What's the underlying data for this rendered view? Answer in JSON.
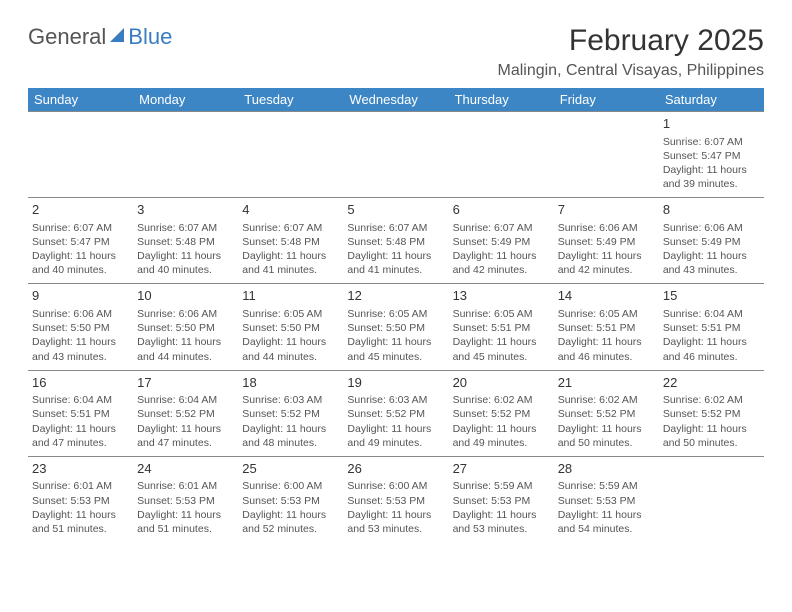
{
  "logo": {
    "text1": "General",
    "text2": "Blue"
  },
  "title": "February 2025",
  "location": "Malingin, Central Visayas, Philippines",
  "header_bg": "#3d86c6",
  "header_fg": "#ffffff",
  "border_color": "#888888",
  "empty_bg": "#eeeeee",
  "logo_blue": "#3a7cc0",
  "day_headers": [
    "Sunday",
    "Monday",
    "Tuesday",
    "Wednesday",
    "Thursday",
    "Friday",
    "Saturday"
  ],
  "weeks": [
    [
      {
        "empty": true
      },
      {
        "empty": true
      },
      {
        "empty": true
      },
      {
        "empty": true
      },
      {
        "empty": true
      },
      {
        "empty": true
      },
      {
        "day": "1",
        "sunrise": "Sunrise: 6:07 AM",
        "sunset": "Sunset: 5:47 PM",
        "daylight": "Daylight: 11 hours and 39 minutes."
      }
    ],
    [
      {
        "day": "2",
        "sunrise": "Sunrise: 6:07 AM",
        "sunset": "Sunset: 5:47 PM",
        "daylight": "Daylight: 11 hours and 40 minutes."
      },
      {
        "day": "3",
        "sunrise": "Sunrise: 6:07 AM",
        "sunset": "Sunset: 5:48 PM",
        "daylight": "Daylight: 11 hours and 40 minutes."
      },
      {
        "day": "4",
        "sunrise": "Sunrise: 6:07 AM",
        "sunset": "Sunset: 5:48 PM",
        "daylight": "Daylight: 11 hours and 41 minutes."
      },
      {
        "day": "5",
        "sunrise": "Sunrise: 6:07 AM",
        "sunset": "Sunset: 5:48 PM",
        "daylight": "Daylight: 11 hours and 41 minutes."
      },
      {
        "day": "6",
        "sunrise": "Sunrise: 6:07 AM",
        "sunset": "Sunset: 5:49 PM",
        "daylight": "Daylight: 11 hours and 42 minutes."
      },
      {
        "day": "7",
        "sunrise": "Sunrise: 6:06 AM",
        "sunset": "Sunset: 5:49 PM",
        "daylight": "Daylight: 11 hours and 42 minutes."
      },
      {
        "day": "8",
        "sunrise": "Sunrise: 6:06 AM",
        "sunset": "Sunset: 5:49 PM",
        "daylight": "Daylight: 11 hours and 43 minutes."
      }
    ],
    [
      {
        "day": "9",
        "sunrise": "Sunrise: 6:06 AM",
        "sunset": "Sunset: 5:50 PM",
        "daylight": "Daylight: 11 hours and 43 minutes."
      },
      {
        "day": "10",
        "sunrise": "Sunrise: 6:06 AM",
        "sunset": "Sunset: 5:50 PM",
        "daylight": "Daylight: 11 hours and 44 minutes."
      },
      {
        "day": "11",
        "sunrise": "Sunrise: 6:05 AM",
        "sunset": "Sunset: 5:50 PM",
        "daylight": "Daylight: 11 hours and 44 minutes."
      },
      {
        "day": "12",
        "sunrise": "Sunrise: 6:05 AM",
        "sunset": "Sunset: 5:50 PM",
        "daylight": "Daylight: 11 hours and 45 minutes."
      },
      {
        "day": "13",
        "sunrise": "Sunrise: 6:05 AM",
        "sunset": "Sunset: 5:51 PM",
        "daylight": "Daylight: 11 hours and 45 minutes."
      },
      {
        "day": "14",
        "sunrise": "Sunrise: 6:05 AM",
        "sunset": "Sunset: 5:51 PM",
        "daylight": "Daylight: 11 hours and 46 minutes."
      },
      {
        "day": "15",
        "sunrise": "Sunrise: 6:04 AM",
        "sunset": "Sunset: 5:51 PM",
        "daylight": "Daylight: 11 hours and 46 minutes."
      }
    ],
    [
      {
        "day": "16",
        "sunrise": "Sunrise: 6:04 AM",
        "sunset": "Sunset: 5:51 PM",
        "daylight": "Daylight: 11 hours and 47 minutes."
      },
      {
        "day": "17",
        "sunrise": "Sunrise: 6:04 AM",
        "sunset": "Sunset: 5:52 PM",
        "daylight": "Daylight: 11 hours and 47 minutes."
      },
      {
        "day": "18",
        "sunrise": "Sunrise: 6:03 AM",
        "sunset": "Sunset: 5:52 PM",
        "daylight": "Daylight: 11 hours and 48 minutes."
      },
      {
        "day": "19",
        "sunrise": "Sunrise: 6:03 AM",
        "sunset": "Sunset: 5:52 PM",
        "daylight": "Daylight: 11 hours and 49 minutes."
      },
      {
        "day": "20",
        "sunrise": "Sunrise: 6:02 AM",
        "sunset": "Sunset: 5:52 PM",
        "daylight": "Daylight: 11 hours and 49 minutes."
      },
      {
        "day": "21",
        "sunrise": "Sunrise: 6:02 AM",
        "sunset": "Sunset: 5:52 PM",
        "daylight": "Daylight: 11 hours and 50 minutes."
      },
      {
        "day": "22",
        "sunrise": "Sunrise: 6:02 AM",
        "sunset": "Sunset: 5:52 PM",
        "daylight": "Daylight: 11 hours and 50 minutes."
      }
    ],
    [
      {
        "day": "23",
        "sunrise": "Sunrise: 6:01 AM",
        "sunset": "Sunset: 5:53 PM",
        "daylight": "Daylight: 11 hours and 51 minutes."
      },
      {
        "day": "24",
        "sunrise": "Sunrise: 6:01 AM",
        "sunset": "Sunset: 5:53 PM",
        "daylight": "Daylight: 11 hours and 51 minutes."
      },
      {
        "day": "25",
        "sunrise": "Sunrise: 6:00 AM",
        "sunset": "Sunset: 5:53 PM",
        "daylight": "Daylight: 11 hours and 52 minutes."
      },
      {
        "day": "26",
        "sunrise": "Sunrise: 6:00 AM",
        "sunset": "Sunset: 5:53 PM",
        "daylight": "Daylight: 11 hours and 53 minutes."
      },
      {
        "day": "27",
        "sunrise": "Sunrise: 5:59 AM",
        "sunset": "Sunset: 5:53 PM",
        "daylight": "Daylight: 11 hours and 53 minutes."
      },
      {
        "day": "28",
        "sunrise": "Sunrise: 5:59 AM",
        "sunset": "Sunset: 5:53 PM",
        "daylight": "Daylight: 11 hours and 54 minutes."
      },
      {
        "empty": true
      }
    ]
  ]
}
